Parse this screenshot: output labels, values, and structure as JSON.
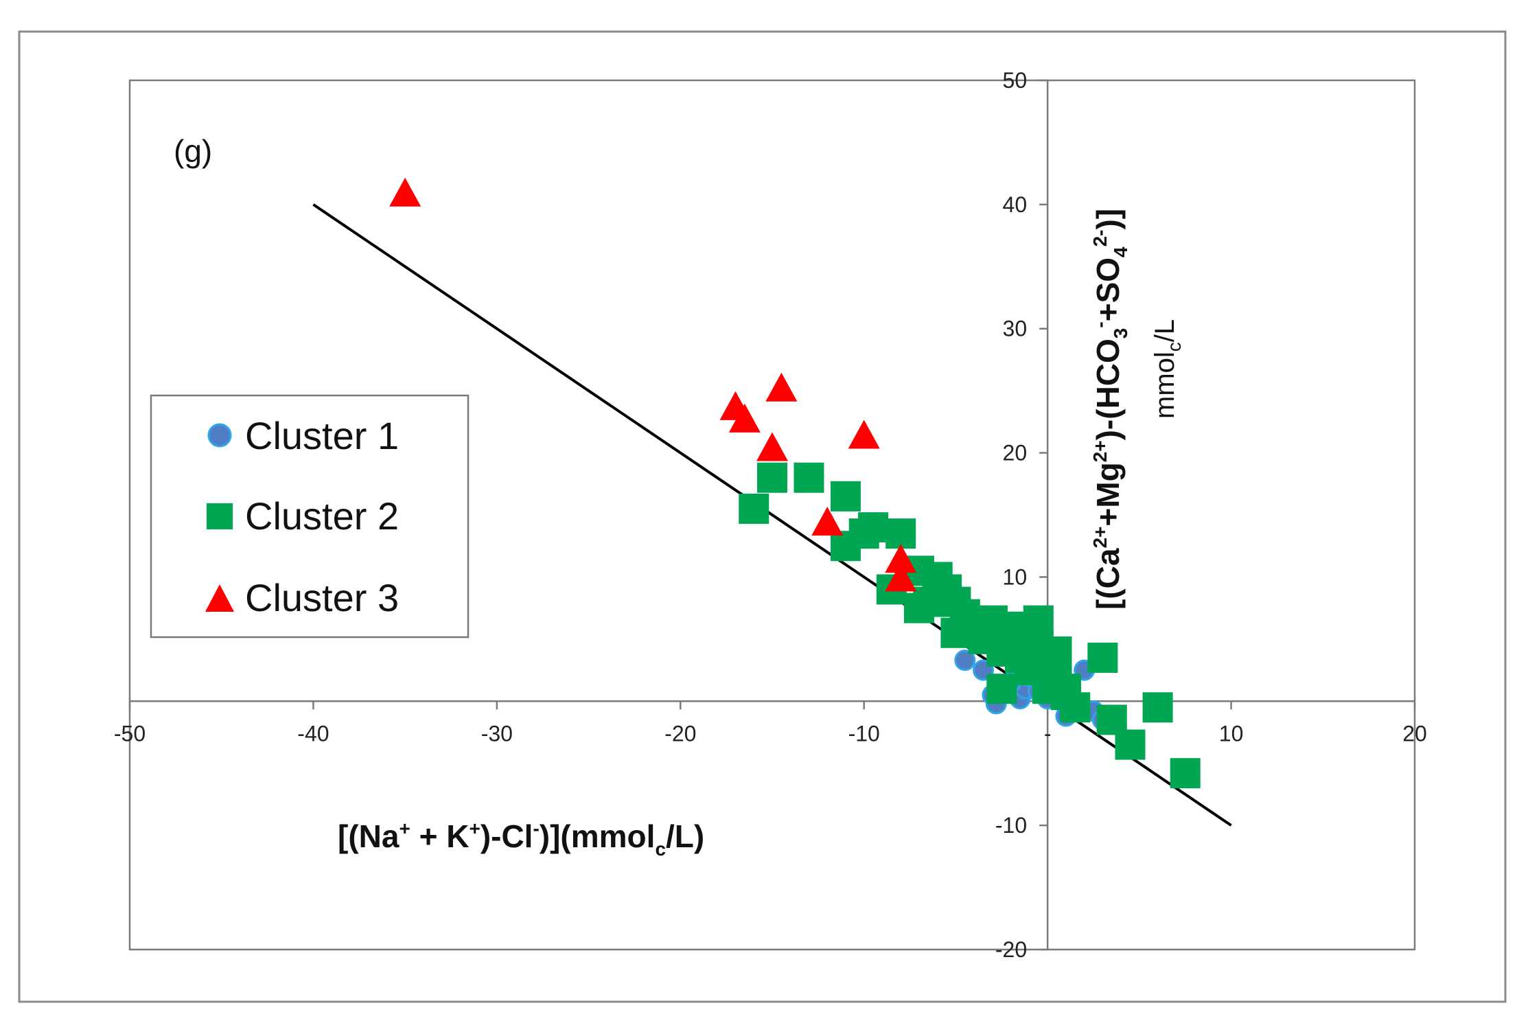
{
  "chart_data": {
    "type": "scatter",
    "panel_label": "(g)",
    "xlabel": {
      "parts": [
        "[(Na",
        "+",
        " + K",
        "+",
        ")-Cl",
        "-",
        ")](mmol",
        "c",
        "/L)"
      ]
    },
    "ylabel": {
      "line1": [
        "[(Ca",
        "2+",
        "+Mg",
        "2+",
        ")-(HCO",
        "3",
        "-",
        "+SO",
        "4",
        "2-",
        ")]"
      ],
      "line2": [
        "mmol",
        "c",
        "/L"
      ]
    },
    "xlim": [
      -50,
      20
    ],
    "ylim": [
      -20,
      50
    ],
    "xticks": [
      -50,
      -40,
      -30,
      -20,
      -10,
      0,
      10,
      20
    ],
    "yticks": [
      -20,
      -10,
      0,
      10,
      20,
      30,
      40,
      50
    ],
    "xtick_labels": [
      "-50",
      "-40",
      "-30",
      "-20",
      "-10",
      "-",
      "10",
      "20"
    ],
    "ytick_labels": [
      "-20",
      "-10",
      "",
      "10",
      "20",
      "30",
      "40",
      "50"
    ],
    "reference_line": {
      "x": [
        -40,
        10
      ],
      "y": [
        40,
        -10
      ]
    },
    "legend": {
      "position": "left-middle"
    },
    "series": [
      {
        "name": "Cluster 1",
        "marker": "circle",
        "color": "#4f7ec4",
        "edge": "#2ea6e8",
        "points": [
          [
            -4.5,
            3.3
          ],
          [
            -5.0,
            5.5
          ],
          [
            -3.0,
            0.5
          ],
          [
            -2.8,
            -0.2
          ],
          [
            -1.5,
            0.2
          ],
          [
            -1.2,
            1.0
          ],
          [
            -1.0,
            2.0
          ],
          [
            -0.5,
            0.8
          ],
          [
            0.0,
            0.2
          ],
          [
            1.0,
            -1.2
          ],
          [
            2.0,
            2.5
          ],
          [
            2.5,
            -0.8
          ],
          [
            3.0,
            -1.5
          ],
          [
            1.5,
            0.0
          ],
          [
            -2.0,
            1.5
          ],
          [
            0.5,
            1.5
          ],
          [
            -3.5,
            2.5
          ]
        ]
      },
      {
        "name": "Cluster 2",
        "marker": "square",
        "color": "#00a651",
        "points": [
          [
            -16.0,
            15.5
          ],
          [
            -15.0,
            18.0
          ],
          [
            -13.0,
            18.0
          ],
          [
            -11.0,
            16.5
          ],
          [
            -11.0,
            12.5
          ],
          [
            -10.0,
            13.5
          ],
          [
            -9.5,
            14.0
          ],
          [
            -8.0,
            13.5
          ],
          [
            -8.5,
            9.0
          ],
          [
            -7.0,
            10.5
          ],
          [
            -6.5,
            8.0
          ],
          [
            -6.0,
            10.0
          ],
          [
            -7.0,
            7.5
          ],
          [
            -5.5,
            9.0
          ],
          [
            -5.0,
            8.0
          ],
          [
            -5.0,
            5.5
          ],
          [
            -4.5,
            7.0
          ],
          [
            -4.0,
            6.0
          ],
          [
            -3.5,
            5.0
          ],
          [
            -3.0,
            6.5
          ],
          [
            -2.5,
            4.0
          ],
          [
            -2.0,
            6.0
          ],
          [
            -1.5,
            3.5
          ],
          [
            -1.0,
            5.0
          ],
          [
            -0.5,
            4.5
          ],
          [
            -0.5,
            6.5
          ],
          [
            0.0,
            3.0
          ],
          [
            0.5,
            2.0
          ],
          [
            0.5,
            4.0
          ],
          [
            1.0,
            1.0
          ],
          [
            1.5,
            -0.5
          ],
          [
            -2.5,
            1.0
          ],
          [
            3.0,
            3.5
          ],
          [
            3.5,
            -1.5
          ],
          [
            4.5,
            -3.5
          ],
          [
            6.0,
            -0.5
          ],
          [
            7.5,
            -5.8
          ],
          [
            -1.0,
            2.5
          ],
          [
            0.0,
            1.0
          ],
          [
            1.0,
            0.5
          ]
        ]
      },
      {
        "name": "Cluster 3",
        "marker": "triangle",
        "color": "#ff0000",
        "points": [
          [
            -35.0,
            41.0
          ],
          [
            -17.0,
            23.8
          ],
          [
            -16.5,
            22.8
          ],
          [
            -14.5,
            25.3
          ],
          [
            -15.0,
            20.5
          ],
          [
            -10.0,
            21.5
          ],
          [
            -12.0,
            14.5
          ],
          [
            -8.0,
            11.5
          ],
          [
            -8.0,
            10.0
          ]
        ]
      }
    ]
  }
}
